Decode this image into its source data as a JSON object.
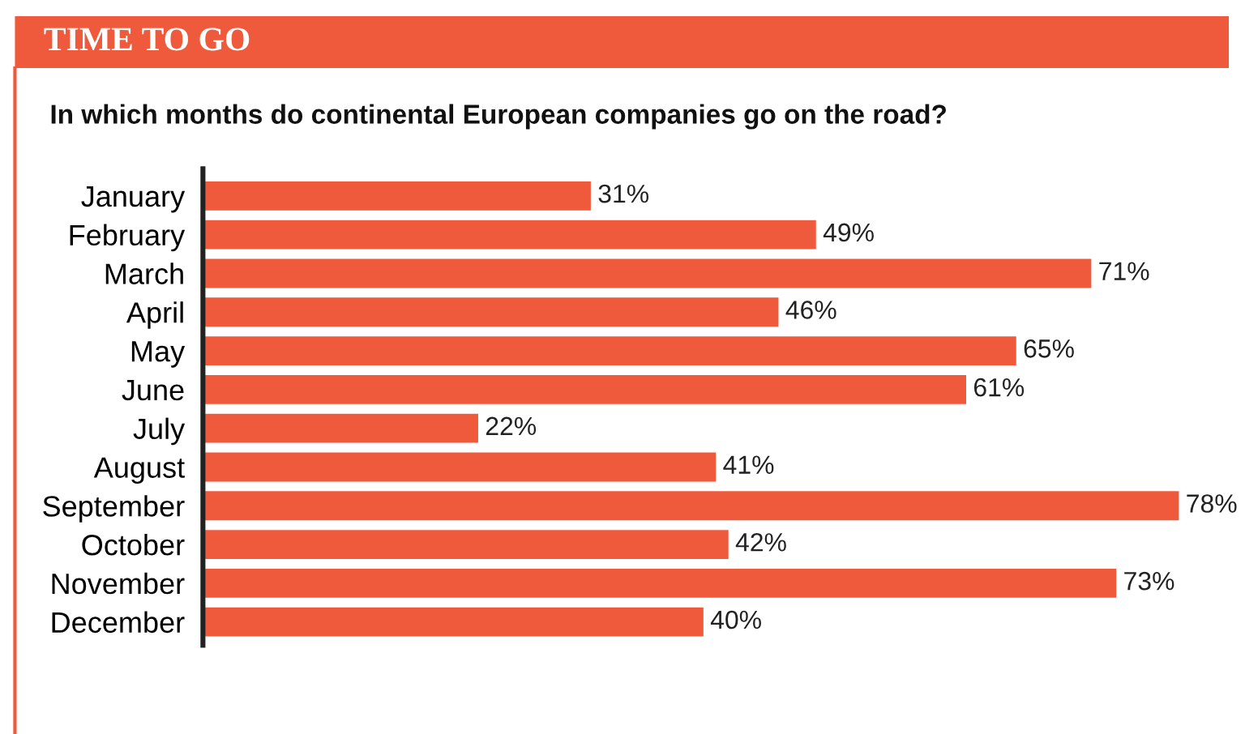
{
  "chart_data": {
    "type": "bar",
    "orientation": "horizontal",
    "title": "TIME TO GO",
    "subtitle": "In which months do continental European companies go on the road?",
    "categories": [
      "January",
      "February",
      "March",
      "April",
      "May",
      "June",
      "July",
      "August",
      "September",
      "October",
      "November",
      "December"
    ],
    "values": [
      31,
      49,
      71,
      46,
      65,
      61,
      22,
      41,
      78,
      42,
      73,
      40
    ],
    "value_labels": [
      "31%",
      "49%",
      "71%",
      "46%",
      "65%",
      "61%",
      "22%",
      "41%",
      "78%",
      "42%",
      "73%",
      "40%"
    ],
    "color": "#ef5a3d",
    "grid": false,
    "legend": false
  }
}
